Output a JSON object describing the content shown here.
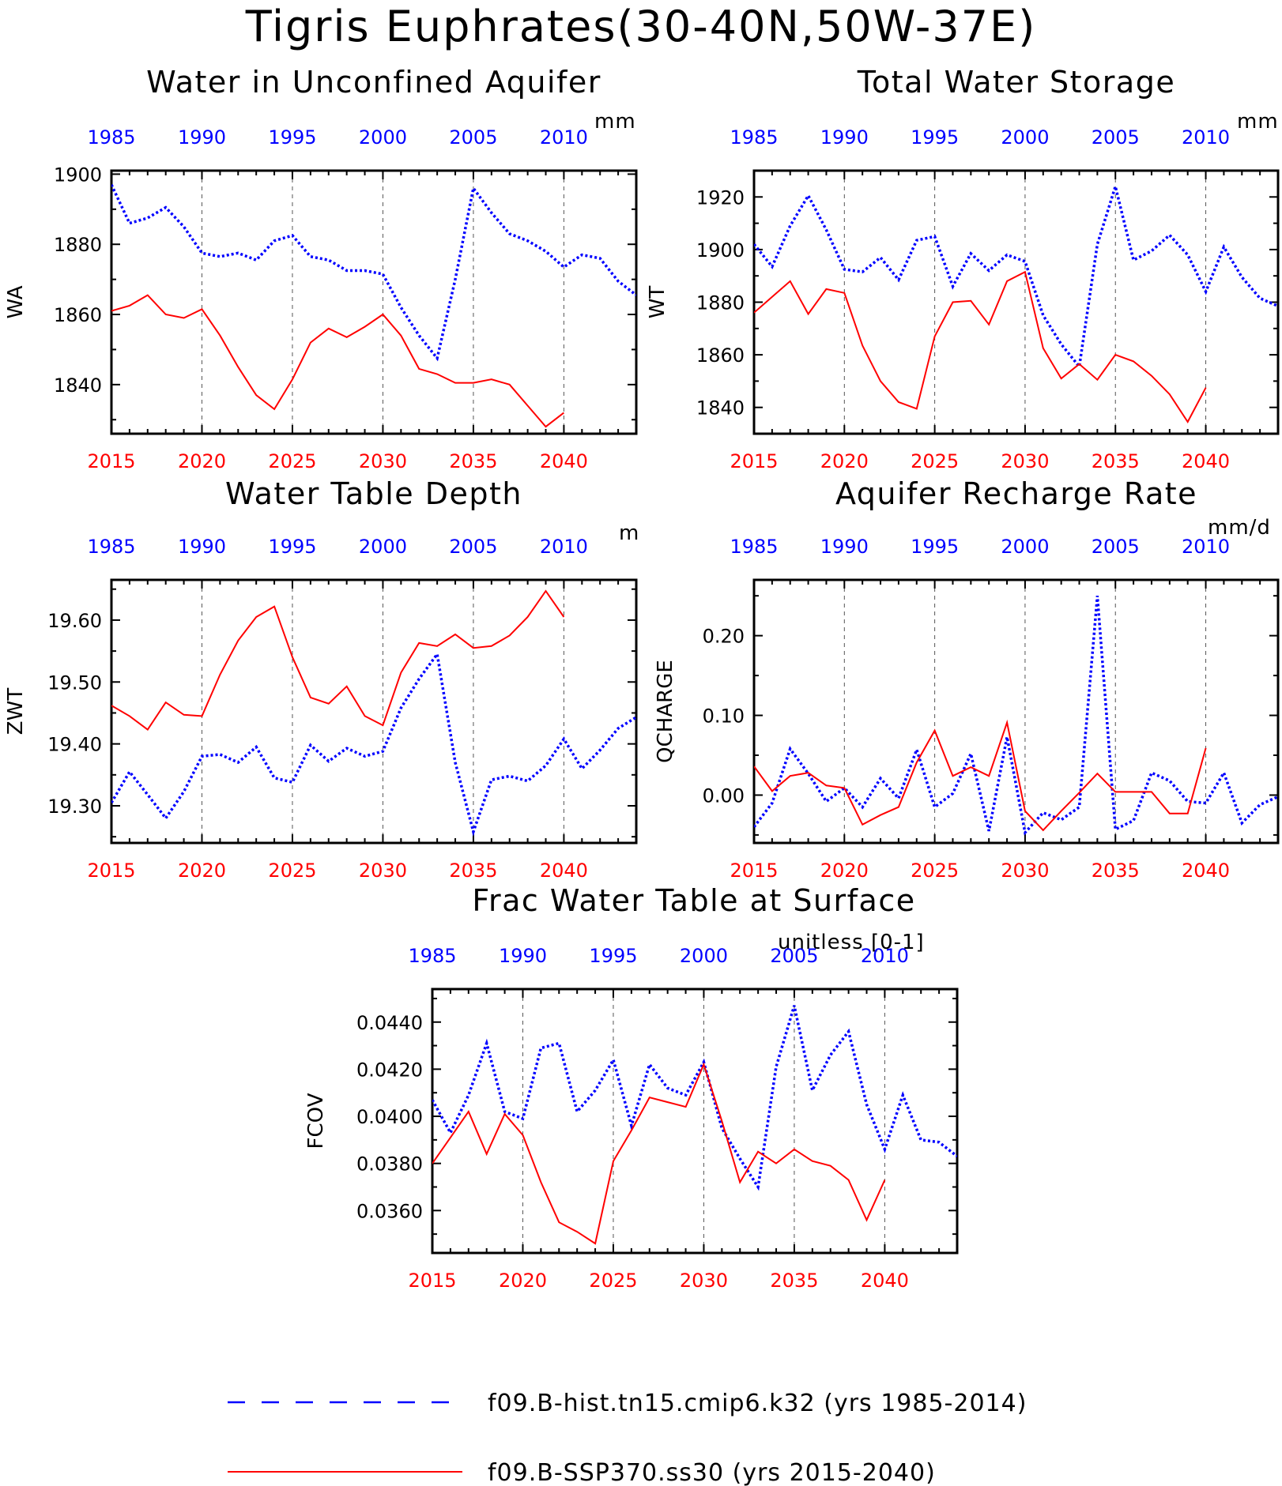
{
  "title": "Tigris Euphrates(30-40N,50W-37E)",
  "colors": {
    "hist": "#0000ff",
    "ssp": "#ff0000"
  },
  "legend": {
    "hist_label": "f09.B-hist.tn15.cmip6.k32 (yrs 1985-2014)",
    "ssp_label": "f09.B-SSP370.ss30 (yrs 2015-2040)"
  },
  "chart_data": [
    {
      "type": "line",
      "title": "Water in Unconfined Aquifer",
      "ylabel": "WA",
      "units": "mm",
      "xlim": [
        2015,
        2044
      ],
      "ylim": [
        1826,
        1901
      ],
      "bottom_ticks": [
        2015,
        2020,
        2025,
        2030,
        2035,
        2040
      ],
      "top_ticks": [
        "1985",
        "1990",
        "1995",
        "2000",
        "2005",
        "2010"
      ],
      "yticks": [
        1840,
        1860,
        1880,
        1900
      ],
      "ytick_labels": [
        "1840",
        "1860",
        "1880",
        "1900"
      ],
      "series": [
        {
          "key": "hist",
          "x_start": 1985,
          "x_offset": 30,
          "values": [
            1897,
            1886,
            1887.5,
            1890.5,
            1885,
            1877.5,
            1876.5,
            1877.5,
            1875.5,
            1881,
            1882.5,
            1876.5,
            1875.5,
            1872.5,
            1872.5,
            1871.5,
            1862,
            1854,
            1847.5,
            1870,
            1896,
            1889,
            1883,
            1881,
            1878,
            1873.5,
            1877,
            1876,
            1869.5,
            1865.5
          ]
        },
        {
          "key": "ssp",
          "x_start": 2015,
          "x_offset": 0,
          "values": [
            1861,
            1862.5,
            1865.5,
            1860,
            1859,
            1861.5,
            1854,
            1845,
            1837,
            1833,
            1841.5,
            1852,
            1856,
            1853.5,
            1856.5,
            1860,
            1854,
            1844.5,
            1843,
            1840.5,
            1840.5,
            1841.5,
            1840,
            1834,
            1828,
            1832
          ]
        }
      ]
    },
    {
      "type": "line",
      "title": "Total Water Storage",
      "ylabel": "WT",
      "units": "mm",
      "xlim": [
        2015,
        2044
      ],
      "ylim": [
        1830,
        1930
      ],
      "bottom_ticks": [
        2015,
        2020,
        2025,
        2030,
        2035,
        2040
      ],
      "top_ticks": [
        "1985",
        "1990",
        "1995",
        "2000",
        "2005",
        "2010"
      ],
      "yticks": [
        1840,
        1860,
        1880,
        1900,
        1920
      ],
      "ytick_labels": [
        "1840",
        "1860",
        "1880",
        "1900",
        "1920"
      ],
      "series": [
        {
          "key": "hist",
          "x_start": 1985,
          "x_offset": 30,
          "values": [
            1902,
            1893.5,
            1909,
            1920.5,
            1907.5,
            1892.5,
            1891.5,
            1897,
            1888.5,
            1903.5,
            1905,
            1886,
            1898.5,
            1892,
            1898,
            1895.5,
            1875,
            1864,
            1855.5,
            1902,
            1924,
            1896,
            1899.5,
            1905.5,
            1898,
            1884,
            1901,
            1889.5,
            1881.5,
            1878.5
          ]
        },
        {
          "key": "ssp",
          "x_start": 2015,
          "x_offset": 0,
          "values": [
            1876,
            1882,
            1888,
            1875.5,
            1885,
            1883.5,
            1863.5,
            1850,
            1842,
            1839.5,
            1867,
            1880,
            1880.5,
            1871.5,
            1888,
            1891.5,
            1862.5,
            1851,
            1856.5,
            1850.5,
            1860,
            1857.5,
            1852,
            1845,
            1834.5,
            1847.5
          ]
        }
      ]
    },
    {
      "type": "line",
      "title": "Water Table Depth",
      "ylabel": "ZWT",
      "units": "m",
      "xlim": [
        2015,
        2044
      ],
      "ylim": [
        19.24,
        19.665
      ],
      "bottom_ticks": [
        2015,
        2020,
        2025,
        2030,
        2035,
        2040
      ],
      "top_ticks": [
        "1985",
        "1990",
        "1995",
        "2000",
        "2005",
        "2010"
      ],
      "yticks": [
        19.3,
        19.4,
        19.5,
        19.6
      ],
      "ytick_labels": [
        "19.30",
        "19.40",
        "19.50",
        "19.60"
      ],
      "series": [
        {
          "key": "hist",
          "x_start": 1985,
          "x_offset": 30,
          "values": [
            19.305,
            19.355,
            19.318,
            19.28,
            19.323,
            19.38,
            19.383,
            19.37,
            19.395,
            19.345,
            19.338,
            19.398,
            19.372,
            19.393,
            19.38,
            19.388,
            19.458,
            19.505,
            19.545,
            19.37,
            19.258,
            19.342,
            19.348,
            19.34,
            19.365,
            19.408,
            19.36,
            19.39,
            19.425,
            19.443
          ]
        },
        {
          "key": "ssp",
          "x_start": 2015,
          "x_offset": 0,
          "values": [
            19.462,
            19.445,
            19.423,
            19.467,
            19.447,
            19.445,
            19.512,
            19.567,
            19.605,
            19.622,
            19.54,
            19.475,
            19.465,
            19.493,
            19.445,
            19.43,
            19.515,
            19.563,
            19.558,
            19.577,
            19.555,
            19.558,
            19.575,
            19.605,
            19.647,
            19.605
          ]
        }
      ]
    },
    {
      "type": "line",
      "title": "Aquifer Recharge Rate",
      "ylabel": "QCHARGE",
      "units": "mm/d",
      "xlim": [
        2015,
        2044
      ],
      "ylim": [
        -0.06,
        0.27
      ],
      "bottom_ticks": [
        2015,
        2020,
        2025,
        2030,
        2035,
        2040
      ],
      "top_ticks": [
        "1985",
        "1990",
        "1995",
        "2000",
        "2005",
        "2010"
      ],
      "yticks": [
        0,
        0.1,
        0.2
      ],
      "ytick_labels": [
        "0.00",
        "0.10",
        "0.20"
      ],
      "series": [
        {
          "key": "hist",
          "x_start": 1985,
          "x_offset": 30,
          "values": [
            -0.04,
            -0.01,
            0.058,
            0.027,
            -0.008,
            0.009,
            -0.015,
            0.021,
            -0.004,
            0.057,
            -0.015,
            0.002,
            0.052,
            -0.045,
            0.073,
            -0.047,
            -0.022,
            -0.031,
            -0.015,
            0.25,
            -0.043,
            -0.032,
            0.028,
            0.018,
            -0.008,
            -0.01,
            0.028,
            -0.035,
            -0.012,
            -0.002
          ]
        },
        {
          "key": "ssp",
          "x_start": 2015,
          "x_offset": 0,
          "values": [
            0.036,
            0.005,
            0.024,
            0.028,
            0.012,
            0.009,
            -0.037,
            -0.025,
            -0.015,
            0.041,
            0.081,
            0.024,
            0.035,
            0.024,
            0.091,
            -0.02,
            -0.044,
            -0.02,
            0.003,
            0.027,
            0.004,
            0.004,
            0.004,
            -0.023,
            -0.023,
            0.059
          ]
        }
      ]
    },
    {
      "type": "line",
      "title": "Frac Water Table at Surface",
      "ylabel": "FCOV",
      "units": "unitless [0-1]",
      "xlim": [
        2015,
        2044
      ],
      "ylim": [
        0.0342,
        0.0454
      ],
      "bottom_ticks": [
        2015,
        2020,
        2025,
        2030,
        2035,
        2040
      ],
      "top_ticks": [
        "1985",
        "1990",
        "1995",
        "2000",
        "2005",
        "2010"
      ],
      "yticks": [
        0.036,
        0.038,
        0.04,
        0.042,
        0.044
      ],
      "ytick_labels": [
        "0.0360",
        "0.0380",
        "0.0400",
        "0.0420",
        "0.0440"
      ],
      "series": [
        {
          "key": "hist",
          "x_start": 1985,
          "x_offset": 30,
          "values": [
            0.0407,
            0.0393,
            0.0409,
            0.0431,
            0.0402,
            0.0399,
            0.0429,
            0.0431,
            0.0402,
            0.0411,
            0.0424,
            0.0396,
            0.0422,
            0.0412,
            0.0409,
            0.0423,
            0.0395,
            0.0382,
            0.037,
            0.0421,
            0.0447,
            0.0411,
            0.0426,
            0.0436,
            0.0405,
            0.0386,
            0.0409,
            0.039,
            0.0389,
            0.0383
          ]
        },
        {
          "key": "ssp",
          "x_start": 2015,
          "x_offset": 0,
          "values": [
            0.038,
            0.0391,
            0.0402,
            0.0384,
            0.0401,
            0.0392,
            0.0372,
            0.0355,
            0.0351,
            0.0346,
            0.0381,
            0.0394,
            0.0408,
            0.0406,
            0.0404,
            0.0422,
            0.0398,
            0.0372,
            0.0385,
            0.038,
            0.0386,
            0.0381,
            0.0379,
            0.0373,
            0.0356,
            0.0373
          ]
        }
      ]
    }
  ]
}
